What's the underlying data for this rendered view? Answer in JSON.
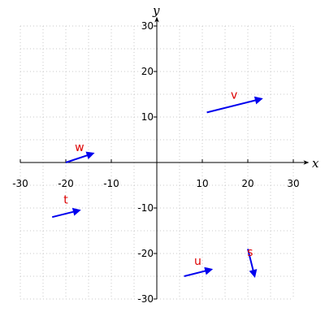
{
  "chart_data": {
    "type": "vector-field",
    "xlabel": "x",
    "ylabel": "y",
    "xlim": [
      -30,
      30
    ],
    "ylim": [
      -30,
      30
    ],
    "xticks": [
      -30,
      -20,
      -10,
      10,
      20,
      30
    ],
    "yticks": [
      30,
      20,
      10,
      -10,
      -20,
      -30
    ],
    "grid": true,
    "vectors": [
      {
        "name": "v",
        "start": [
          11,
          11
        ],
        "end": [
          23,
          14
        ],
        "label_at": [
          17,
          14
        ]
      },
      {
        "name": "w",
        "start": [
          -20,
          0
        ],
        "end": [
          -14,
          2
        ],
        "label_at": [
          -17,
          2.5
        ]
      },
      {
        "name": "t",
        "start": [
          -23,
          -12
        ],
        "end": [
          -17,
          -10.5
        ],
        "label_at": [
          -20,
          -9
        ]
      },
      {
        "name": "u",
        "start": [
          6,
          -25
        ],
        "end": [
          12,
          -23.5
        ],
        "label_at": [
          9,
          -22.5
        ]
      },
      {
        "name": "s",
        "start": [
          20,
          -19
        ],
        "end": [
          21.5,
          -25
        ],
        "label_at": [
          20.5,
          -20.5
        ]
      }
    ]
  },
  "colors": {
    "vector": "#0000ee",
    "vector_label": "#dd0000",
    "grid": "#c8c8c8",
    "axis": "#000000"
  }
}
